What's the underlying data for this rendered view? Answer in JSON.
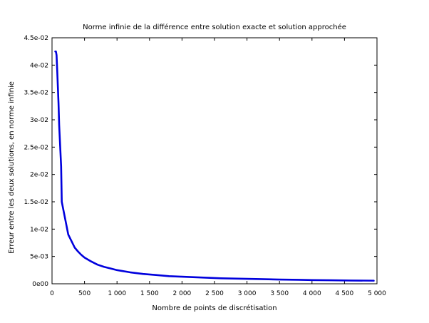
{
  "chart_data": {
    "type": "line",
    "title": "Norme infinie de la différence entre solution exacte et solution approchée",
    "xlabel": "Nombre de points de discrétisation",
    "ylabel": "Erreur entre les deux solutions, en norme infinie",
    "xlim": [
      0,
      5000
    ],
    "ylim": [
      0,
      0.045
    ],
    "x_ticks": [
      {
        "value": 0,
        "label": "0"
      },
      {
        "value": 500,
        "label": "500"
      },
      {
        "value": 1000,
        "label": "1 000"
      },
      {
        "value": 1500,
        "label": "1 500"
      },
      {
        "value": 2000,
        "label": "2 000"
      },
      {
        "value": 2500,
        "label": "2 500"
      },
      {
        "value": 3000,
        "label": "3 000"
      },
      {
        "value": 3500,
        "label": "3 500"
      },
      {
        "value": 4000,
        "label": "4 000"
      },
      {
        "value": 4500,
        "label": "4 500"
      },
      {
        "value": 5000,
        "label": "5 000"
      }
    ],
    "y_ticks": [
      {
        "value": 0,
        "label": "0e00"
      },
      {
        "value": 0.005,
        "label": "5e-03"
      },
      {
        "value": 0.01,
        "label": "1e-02"
      },
      {
        "value": 0.015,
        "label": "1.5e-02"
      },
      {
        "value": 0.02,
        "label": "2e-02"
      },
      {
        "value": 0.025,
        "label": "2.5e-02"
      },
      {
        "value": 0.03,
        "label": "3e-02"
      },
      {
        "value": 0.035,
        "label": "3.5e-02"
      },
      {
        "value": 0.04,
        "label": "4e-02"
      },
      {
        "value": 0.045,
        "label": "4.5e-02"
      }
    ],
    "grid": false,
    "series": [
      {
        "color": "#0000dd",
        "points": [
          [
            50,
            0.0425
          ],
          [
            60,
            0.0425
          ],
          [
            70,
            0.0418
          ],
          [
            80,
            0.039
          ],
          [
            90,
            0.036
          ],
          [
            100,
            0.033
          ],
          [
            110,
            0.029
          ],
          [
            120,
            0.0265
          ],
          [
            130,
            0.024
          ],
          [
            140,
            0.0215
          ],
          [
            150,
            0.015
          ],
          [
            200,
            0.012
          ],
          [
            250,
            0.009
          ],
          [
            300,
            0.0078
          ],
          [
            350,
            0.0066
          ],
          [
            400,
            0.0059
          ],
          [
            450,
            0.0053
          ],
          [
            500,
            0.0048
          ],
          [
            600,
            0.0041
          ],
          [
            700,
            0.0035
          ],
          [
            800,
            0.0031
          ],
          [
            900,
            0.0028
          ],
          [
            1000,
            0.0025
          ],
          [
            1200,
            0.0021
          ],
          [
            1400,
            0.0018
          ],
          [
            1600,
            0.0016
          ],
          [
            1800,
            0.0014
          ],
          [
            2000,
            0.0013
          ],
          [
            2200,
            0.0012
          ],
          [
            2400,
            0.0011
          ],
          [
            2600,
            0.001
          ],
          [
            2800,
            0.00095
          ],
          [
            3000,
            0.0009
          ],
          [
            3200,
            0.00085
          ],
          [
            3500,
            0.00078
          ],
          [
            3800,
            0.00072
          ],
          [
            4000,
            0.00068
          ],
          [
            4300,
            0.00064
          ],
          [
            4600,
            0.0006
          ],
          [
            4950,
            0.00057
          ]
        ]
      }
    ]
  }
}
